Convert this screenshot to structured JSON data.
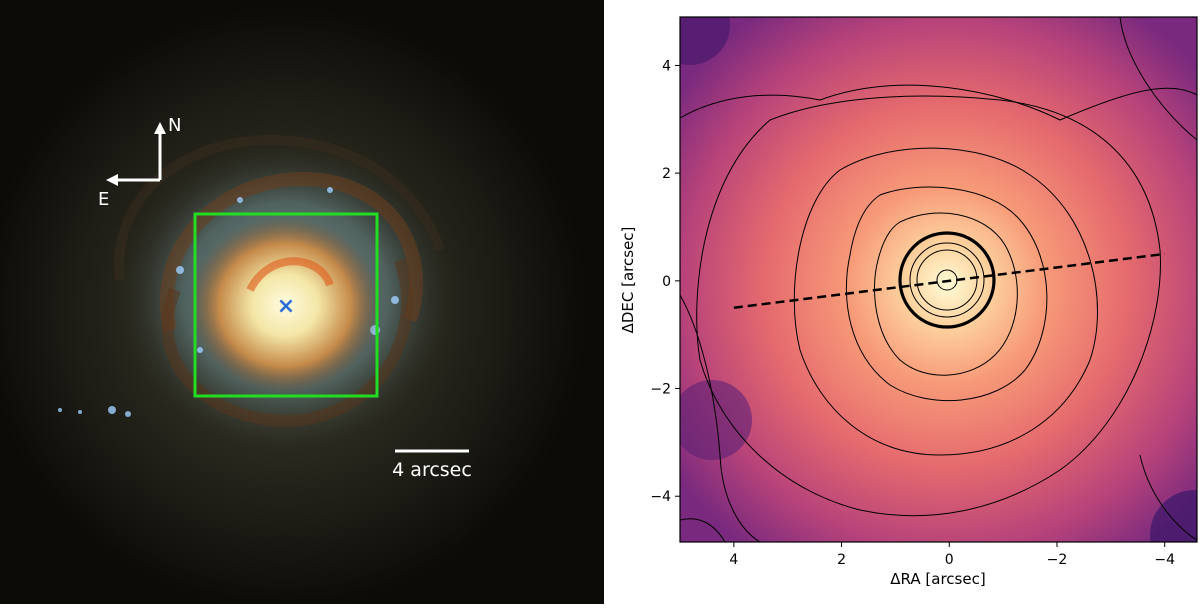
{
  "left_image": {
    "compass": {
      "north_label": "N",
      "east_label": "E"
    },
    "scale_bar": {
      "label": "4 arcsec"
    },
    "marker_symbol": "×",
    "colors": {
      "box": "#22dd22",
      "marker": "#2a6fd6",
      "annotation": "#ffffff"
    }
  },
  "right_plot": {
    "xlabel": "ΔRA [arcsec]",
    "ylabel": "ΔDEC [arcsec]",
    "xlim": [
      5,
      -4.6
    ],
    "ylim": [
      -4.85,
      4.9
    ],
    "xticks": [
      4,
      2,
      0,
      -2,
      -4
    ],
    "yticks": [
      -4,
      -2,
      0,
      2,
      4
    ],
    "xtick_labels": [
      "4",
      "2",
      "0",
      "−2",
      "−4"
    ],
    "ytick_labels": [
      "−4",
      "−2",
      "0",
      "2",
      "4"
    ],
    "colormap": "magma",
    "dashed_line": {
      "x": [
        4,
        -4
      ],
      "y": [
        -0.5,
        0.5
      ]
    },
    "colors": {
      "contour": "#000000",
      "dashed_line": "#000000"
    }
  }
}
